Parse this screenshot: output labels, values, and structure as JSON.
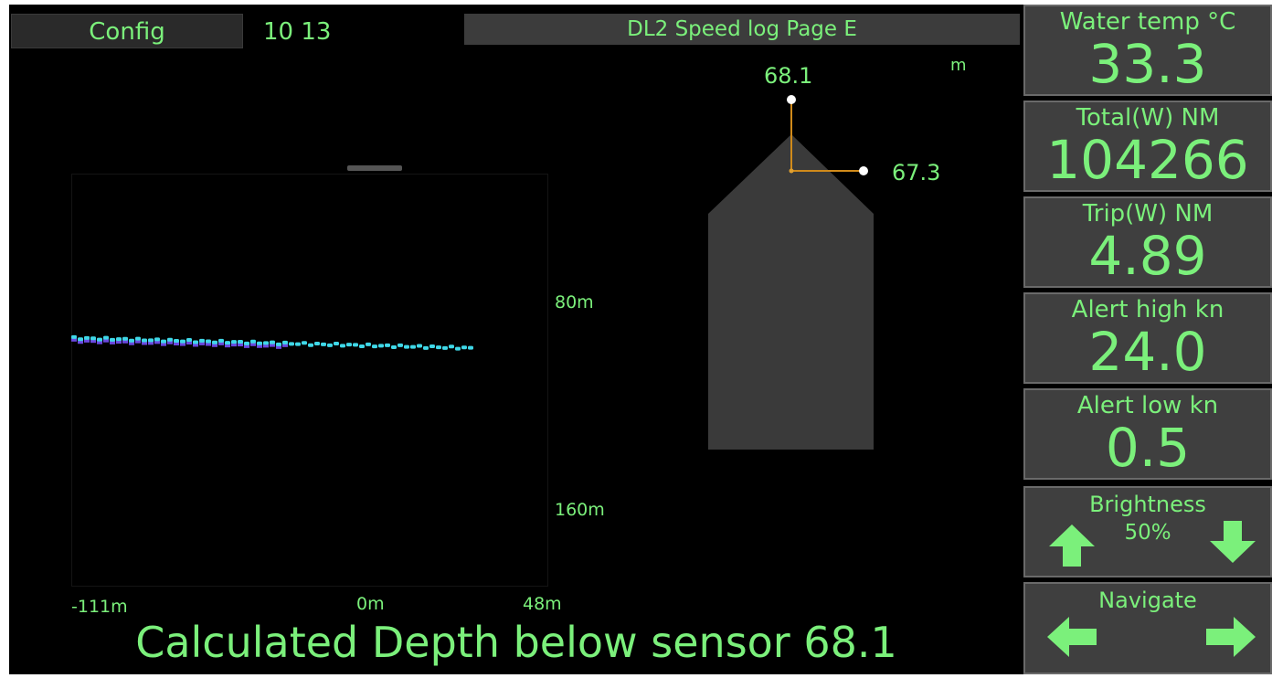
{
  "header": {
    "config_label": "Config",
    "clock": "10 13",
    "page_title": "DL2 Speed log Page E"
  },
  "sonar": {
    "depth_labels": [
      "80m",
      "160m"
    ],
    "x_labels": [
      "-111m",
      "0m",
      "48m"
    ],
    "colors": {
      "track_primary": "#3fd8e8",
      "track_secondary": "#6a48e0"
    }
  },
  "boat": {
    "unit": "m",
    "forward_depth": "68.1",
    "side_depth": "67.3",
    "hull_color": "#3a3a3a",
    "guide_color": "#d08a1a"
  },
  "footer": {
    "text": "Calculated Depth below sensor 68.1"
  },
  "panels": [
    {
      "label": "Water temp °C",
      "value": "33.3"
    },
    {
      "label": "Total(W) NM",
      "value": "104266"
    },
    {
      "label": "Trip(W) NM",
      "value": "4.89"
    },
    {
      "label": "Alert high kn",
      "value": "24.0"
    },
    {
      "label": "Alert low kn",
      "value": "0.5"
    }
  ],
  "brightness": {
    "label": "Brightness",
    "value": "50%",
    "up_icon": "arrow-up-icon",
    "down_icon": "arrow-down-icon"
  },
  "navigate": {
    "label": "Navigate",
    "left_icon": "arrow-left-icon",
    "right_icon": "arrow-right-icon"
  },
  "accent_color": "#7bf07b"
}
